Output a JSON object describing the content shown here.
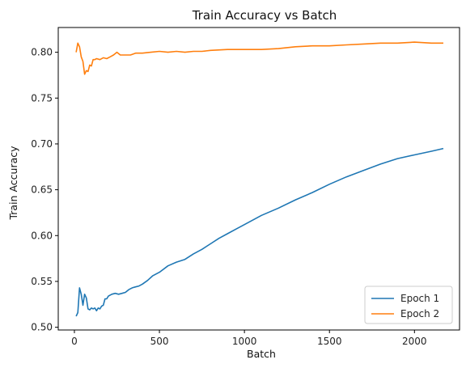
{
  "chart_data": {
    "type": "line",
    "title": "Train Accuracy vs Batch",
    "xlabel": "Batch",
    "ylabel": "Train Accuracy",
    "xlim": [
      -95,
      2265
    ],
    "ylim": [
      0.497,
      0.827
    ],
    "xticks": [
      0,
      500,
      1000,
      1500,
      2000
    ],
    "yticks": [
      0.5,
      0.55,
      0.6,
      0.65,
      0.7,
      0.75,
      0.8
    ],
    "ytick_labels": [
      "0.50",
      "0.55",
      "0.60",
      "0.65",
      "0.70",
      "0.75",
      "0.80"
    ],
    "grid": false,
    "legend_position": "lower-right",
    "series": [
      {
        "name": "Epoch 1",
        "color": "#1f77b4",
        "x": [
          10,
          20,
          30,
          40,
          50,
          60,
          70,
          80,
          90,
          100,
          110,
          120,
          130,
          140,
          150,
          160,
          170,
          180,
          190,
          200,
          220,
          240,
          260,
          280,
          300,
          320,
          340,
          360,
          380,
          400,
          430,
          460,
          500,
          550,
          600,
          650,
          700,
          750,
          800,
          850,
          900,
          950,
          1000,
          1100,
          1200,
          1300,
          1400,
          1500,
          1600,
          1700,
          1800,
          1900,
          2000,
          2100,
          2170
        ],
        "y": [
          0.512,
          0.516,
          0.543,
          0.536,
          0.524,
          0.536,
          0.532,
          0.52,
          0.519,
          0.521,
          0.52,
          0.521,
          0.518,
          0.521,
          0.52,
          0.523,
          0.524,
          0.531,
          0.531,
          0.534,
          0.536,
          0.537,
          0.536,
          0.537,
          0.538,
          0.541,
          0.543,
          0.544,
          0.545,
          0.547,
          0.551,
          0.556,
          0.56,
          0.567,
          0.571,
          0.574,
          0.58,
          0.585,
          0.591,
          0.597,
          0.602,
          0.607,
          0.612,
          0.622,
          0.63,
          0.639,
          0.647,
          0.656,
          0.664,
          0.671,
          0.678,
          0.684,
          0.688,
          0.692,
          0.695
        ]
      },
      {
        "name": "Epoch 2",
        "color": "#ff7f0e",
        "x": [
          10,
          20,
          30,
          40,
          50,
          60,
          70,
          80,
          90,
          100,
          110,
          120,
          130,
          150,
          170,
          190,
          210,
          230,
          250,
          270,
          300,
          330,
          360,
          400,
          450,
          500,
          550,
          600,
          650,
          700,
          750,
          800,
          900,
          1000,
          1100,
          1200,
          1300,
          1400,
          1500,
          1600,
          1700,
          1800,
          1900,
          2000,
          2100,
          2170
        ],
        "y": [
          0.8,
          0.81,
          0.806,
          0.795,
          0.79,
          0.776,
          0.78,
          0.779,
          0.786,
          0.785,
          0.792,
          0.792,
          0.793,
          0.792,
          0.794,
          0.793,
          0.795,
          0.797,
          0.8,
          0.797,
          0.797,
          0.797,
          0.799,
          0.799,
          0.8,
          0.801,
          0.8,
          0.801,
          0.8,
          0.801,
          0.801,
          0.802,
          0.803,
          0.803,
          0.803,
          0.804,
          0.806,
          0.807,
          0.807,
          0.808,
          0.809,
          0.81,
          0.81,
          0.811,
          0.81,
          0.81
        ]
      }
    ]
  }
}
